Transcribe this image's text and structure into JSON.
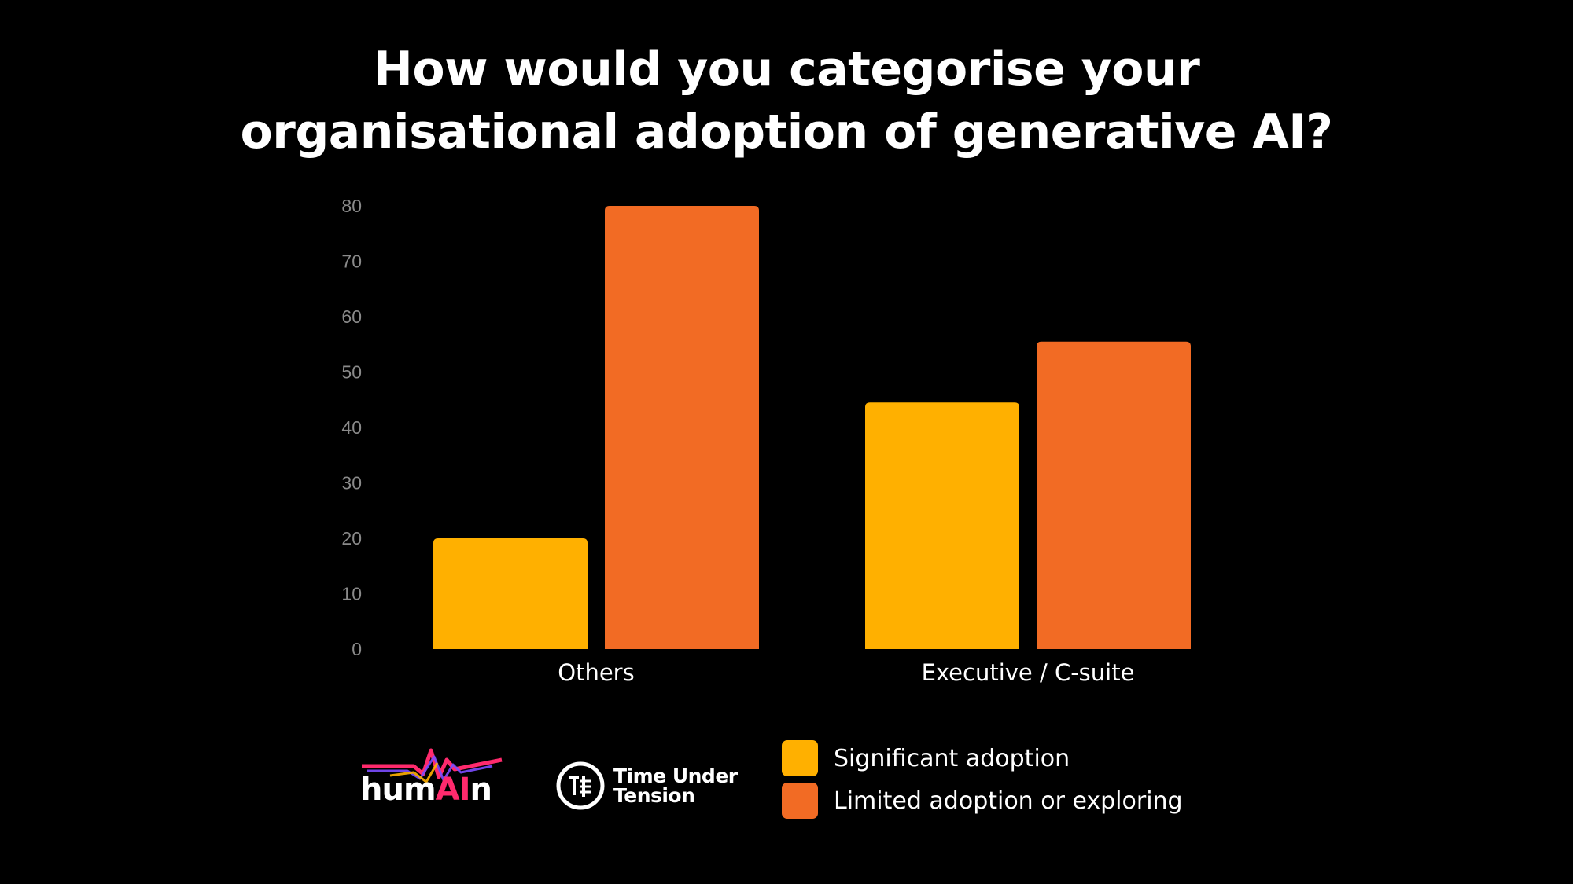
{
  "title_lines": [
    "How would you categorise your",
    "organisational adoption of generative AI?"
  ],
  "chart_data": {
    "type": "bar",
    "title": "How would you categorise your organisational adoption of generative AI?",
    "categories": [
      "Others",
      "Executive / C-suite"
    ],
    "series": [
      {
        "name": "Significant adoption",
        "values": [
          20,
          44.5
        ],
        "color": "#FFB000"
      },
      {
        "name": "Limited adoption or exploring",
        "values": [
          80,
          55.5
        ],
        "color": "#F26B24"
      }
    ],
    "ylim": [
      0,
      80
    ],
    "yticks": [
      0,
      10,
      20,
      30,
      40,
      50,
      60,
      70,
      80
    ],
    "grid": false,
    "legend_position": "bottom"
  },
  "legend": [
    {
      "label": "Significant adoption",
      "color": "#FFB000"
    },
    {
      "label": "Limited adoption or exploring",
      "color": "#F26B24"
    }
  ],
  "logos": {
    "humain": {
      "prefix": "hum",
      "highlight": "AI",
      "suffix": "n",
      "icon": "heartbeat-wave-icon"
    },
    "time_under_tension": {
      "line1": "Time Under",
      "line2": "Tension",
      "icon": "tut-logo-icon"
    }
  }
}
